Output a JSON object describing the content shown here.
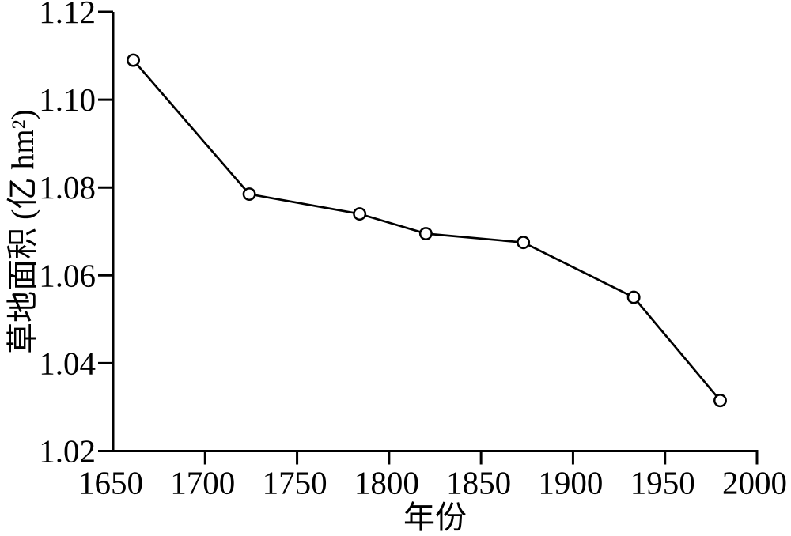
{
  "figure": {
    "background_color": "#ffffff",
    "ink_color": "#000000",
    "marker_fill_color": "#ffffff"
  },
  "chart_data": {
    "type": "line",
    "x": [
      1661,
      1724,
      1784,
      1820,
      1873,
      1933,
      1980
    ],
    "y": [
      1.109,
      1.0785,
      1.074,
      1.0695,
      1.0675,
      1.055,
      1.0315
    ],
    "xlabel": "年份",
    "ylabel": "草地面积 (亿 hm²)",
    "xlim": [
      1650,
      2000
    ],
    "ylim": [
      1.02,
      1.12
    ],
    "xticks": [
      1650,
      1700,
      1750,
      1800,
      1850,
      1900,
      1950,
      2000
    ],
    "xtick_labels": [
      "1650",
      "1700",
      "1750",
      "1800",
      "1850",
      "1900",
      "1950",
      "2000"
    ],
    "yticks": [
      1.02,
      1.04,
      1.06,
      1.08,
      1.1,
      1.12
    ],
    "ytick_labels": [
      "1.02",
      "1.04",
      "1.06",
      "1.08",
      "1.10",
      "1.12"
    ],
    "grid": false,
    "legend": "none",
    "marker": "open-circle",
    "line_color": "#000000"
  }
}
